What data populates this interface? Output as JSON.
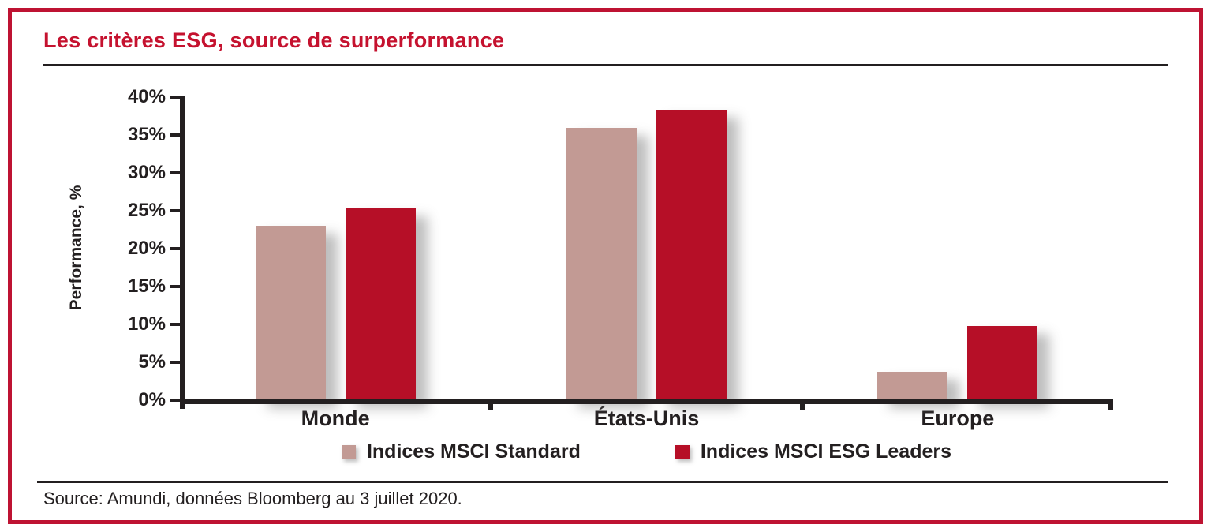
{
  "title": "Les critères ESG, source de surperformance",
  "source": "Source: Amundi, données Bloomberg au 3 juillet 2020.",
  "colors": {
    "title_red": "#c5122f",
    "border_red": "#be1332",
    "axis_black": "#231f20",
    "bar_standard": "#c29a94",
    "bar_esg_leaders": "#b60f27"
  },
  "chart_data": {
    "type": "bar",
    "title": "Les critères ESG, source de surperformance",
    "categories": [
      "Monde",
      "États-Unis",
      "Europe"
    ],
    "series": [
      {
        "name": "Indices MSCI Standard",
        "color": "#c29a94",
        "values": [
          23.0,
          35.9,
          3.7
        ]
      },
      {
        "name": "Indices MSCI ESG Leaders",
        "color": "#b60f27",
        "values": [
          25.3,
          38.3,
          9.8
        ]
      }
    ],
    "xlabel": "",
    "ylabel": "Performance, %",
    "ylim": [
      0,
      40
    ],
    "ytick_step": 5,
    "ytick_labels": [
      "0%",
      "5%",
      "10%",
      "15%",
      "20%",
      "25%",
      "30%",
      "35%",
      "40%"
    ],
    "grid": false,
    "legend_position": "bottom"
  }
}
